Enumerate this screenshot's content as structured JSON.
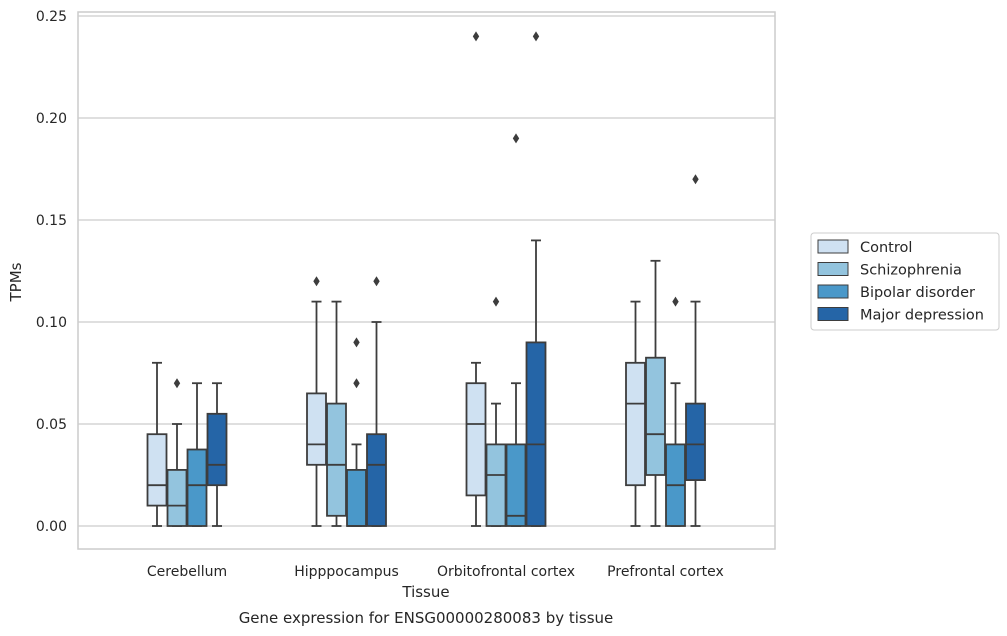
{
  "chart_data": {
    "type": "box",
    "title": "",
    "xlabel": "Tissue",
    "ylabel": "TPMs",
    "caption": "Gene expression for ENSG00000280083 by tissue",
    "ylim": [
      -0.012,
      0.253
    ],
    "yticks": [
      "0.00",
      "0.05",
      "0.10",
      "0.15",
      "0.20",
      "0.25"
    ],
    "ytick_values": [
      0,
      0.05,
      0.1,
      0.15,
      0.2,
      0.25
    ],
    "grid": "horizontal",
    "legend_position": "outside-right",
    "categories": [
      "Cerebellum",
      "Hipppocampus",
      "Orbitofrontal cortex",
      "Prefrontal cortex"
    ],
    "series": [
      {
        "name": "Control",
        "color": "#cfe1f2",
        "boxes": [
          {
            "whisker_low": 0,
            "q1": 0.01,
            "median": 0.02,
            "q3": 0.045,
            "whisker_high": 0.08,
            "outliers": []
          },
          {
            "whisker_low": 0,
            "q1": 0.03,
            "median": 0.04,
            "q3": 0.065,
            "whisker_high": 0.11,
            "outliers": [
              0.12
            ]
          },
          {
            "whisker_low": 0,
            "q1": 0.015,
            "median": 0.05,
            "q3": 0.07,
            "whisker_high": 0.08,
            "outliers": [
              0.24
            ]
          },
          {
            "whisker_low": 0,
            "q1": 0.02,
            "median": 0.06,
            "q3": 0.08,
            "whisker_high": 0.11,
            "outliers": []
          }
        ]
      },
      {
        "name": "Schizophrenia",
        "color": "#93c4de",
        "boxes": [
          {
            "whisker_low": 0,
            "q1": 0,
            "median": 0.01,
            "q3": 0.0275,
            "whisker_high": 0.05,
            "outliers": [
              0.07
            ]
          },
          {
            "whisker_low": 0,
            "q1": 0.005,
            "median": 0.03,
            "q3": 0.06,
            "whisker_high": 0.11,
            "outliers": []
          },
          {
            "whisker_low": 0,
            "q1": 0,
            "median": 0.025,
            "q3": 0.04,
            "whisker_high": 0.06,
            "outliers": [
              0.11
            ]
          },
          {
            "whisker_low": 0,
            "q1": 0.025,
            "median": 0.045,
            "q3": 0.0825,
            "whisker_high": 0.13,
            "outliers": []
          }
        ]
      },
      {
        "name": "Bipolar disorder",
        "color": "#4a98c9",
        "boxes": [
          {
            "whisker_low": 0,
            "q1": 0,
            "median": 0.02,
            "q3": 0.0375,
            "whisker_high": 0.07,
            "outliers": []
          },
          {
            "whisker_low": 0,
            "q1": 0,
            "median": 0,
            "q3": 0.0275,
            "whisker_high": 0.04,
            "outliers": [
              0.07,
              0.09
            ]
          },
          {
            "whisker_low": 0,
            "q1": 0,
            "median": 0.005,
            "q3": 0.04,
            "whisker_high": 0.07,
            "outliers": [
              0.19
            ]
          },
          {
            "whisker_low": 0,
            "q1": 0,
            "median": 0.02,
            "q3": 0.04,
            "whisker_high": 0.07,
            "outliers": [
              0.11
            ]
          }
        ]
      },
      {
        "name": "Major depression",
        "color": "#2565a7",
        "boxes": [
          {
            "whisker_low": 0,
            "q1": 0.02,
            "median": 0.03,
            "q3": 0.055,
            "whisker_high": 0.07,
            "outliers": []
          },
          {
            "whisker_low": 0,
            "q1": 0,
            "median": 0.03,
            "q3": 0.045,
            "whisker_high": 0.1,
            "outliers": [
              0.12
            ]
          },
          {
            "whisker_low": 0,
            "q1": 0,
            "median": 0.04,
            "q3": 0.09,
            "whisker_high": 0.14,
            "outliers": [
              0.24
            ]
          },
          {
            "whisker_low": 0,
            "q1": 0.0225,
            "median": 0.04,
            "q3": 0.06,
            "whisker_high": 0.11,
            "outliers": [
              0.17
            ]
          }
        ]
      }
    ]
  }
}
